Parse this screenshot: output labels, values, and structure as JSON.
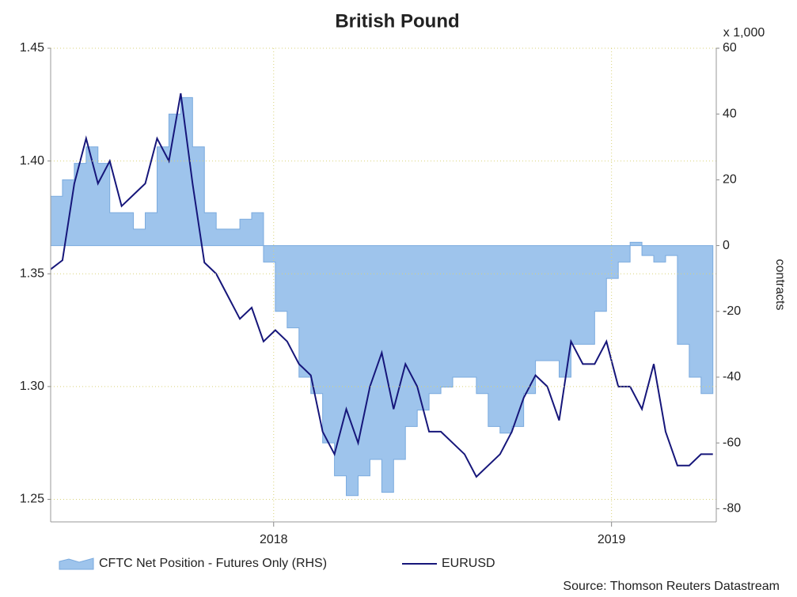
{
  "chart_data": {
    "type": "line",
    "title": "British Pound",
    "y2_unit": "x 1,000",
    "y2_label": "contracts",
    "source": "Source: Thomson Reuters Datastream",
    "x": [
      2017.34,
      2017.375,
      2017.41,
      2017.445,
      2017.48,
      2017.515,
      2017.55,
      2017.585,
      2017.62,
      2017.655,
      2017.69,
      2017.725,
      2017.76,
      2017.795,
      2017.83,
      2017.865,
      2017.9,
      2017.935,
      2017.97,
      2018.005,
      2018.04,
      2018.075,
      2018.11,
      2018.145,
      2018.18,
      2018.215,
      2018.25,
      2018.285,
      2018.32,
      2018.355,
      2018.39,
      2018.425,
      2018.46,
      2018.495,
      2018.53,
      2018.565,
      2018.6,
      2018.635,
      2018.67,
      2018.705,
      2018.74,
      2018.775,
      2018.81,
      2018.845,
      2018.88,
      2018.915,
      2018.95,
      2018.985,
      2019.02,
      2019.055,
      2019.09,
      2019.125,
      2019.16,
      2019.195,
      2019.23,
      2019.265,
      2019.3
    ],
    "series": [
      {
        "name": "CFTC Net Position - Futures Only (RHS)",
        "kind": "area",
        "axis": "y2",
        "color": "#9ec4ec",
        "values": [
          15,
          20,
          25,
          30,
          25,
          10,
          10,
          5,
          10,
          30,
          40,
          45,
          30,
          10,
          5,
          5,
          8,
          10,
          -5,
          -20,
          -25,
          -40,
          -45,
          -60,
          -70,
          -76,
          -70,
          -65,
          -75,
          -65,
          -55,
          -50,
          -45,
          -43,
          -40,
          -40,
          -45,
          -55,
          -57,
          -55,
          -45,
          -35,
          -35,
          -40,
          -30,
          -30,
          -20,
          -10,
          -5,
          1,
          -3,
          -5,
          -3,
          -30,
          -40,
          -45,
          -45
        ]
      },
      {
        "name": "EURUSD",
        "kind": "line",
        "axis": "y",
        "color": "#16167a",
        "values": [
          1.352,
          1.356,
          1.39,
          1.41,
          1.39,
          1.4,
          1.38,
          1.385,
          1.39,
          1.41,
          1.4,
          1.43,
          1.39,
          1.355,
          1.35,
          1.34,
          1.33,
          1.335,
          1.32,
          1.325,
          1.32,
          1.31,
          1.305,
          1.28,
          1.27,
          1.29,
          1.275,
          1.3,
          1.315,
          1.29,
          1.31,
          1.3,
          1.28,
          1.28,
          1.275,
          1.27,
          1.26,
          1.265,
          1.27,
          1.28,
          1.295,
          1.305,
          1.3,
          1.285,
          1.32,
          1.31,
          1.31,
          1.32,
          1.3,
          1.3,
          1.29,
          1.31,
          1.28,
          1.265,
          1.265,
          1.27,
          1.27
        ]
      }
    ],
    "xlim": [
      2017.34,
      2019.31
    ],
    "xticks": [
      2018,
      2019
    ],
    "ylim": [
      1.24,
      1.45
    ],
    "yticks": [
      1.25,
      {
        "value": 1.3,
        "label": "1.30"
      },
      1.35,
      {
        "value": 1.4,
        "label": "1.40"
      },
      1.45
    ],
    "y2lim": [
      -84,
      60
    ],
    "y2ticks": [
      -80,
      -60,
      -40,
      -20,
      0,
      20,
      40,
      60
    ],
    "grid": true,
    "legend": "bottom"
  }
}
